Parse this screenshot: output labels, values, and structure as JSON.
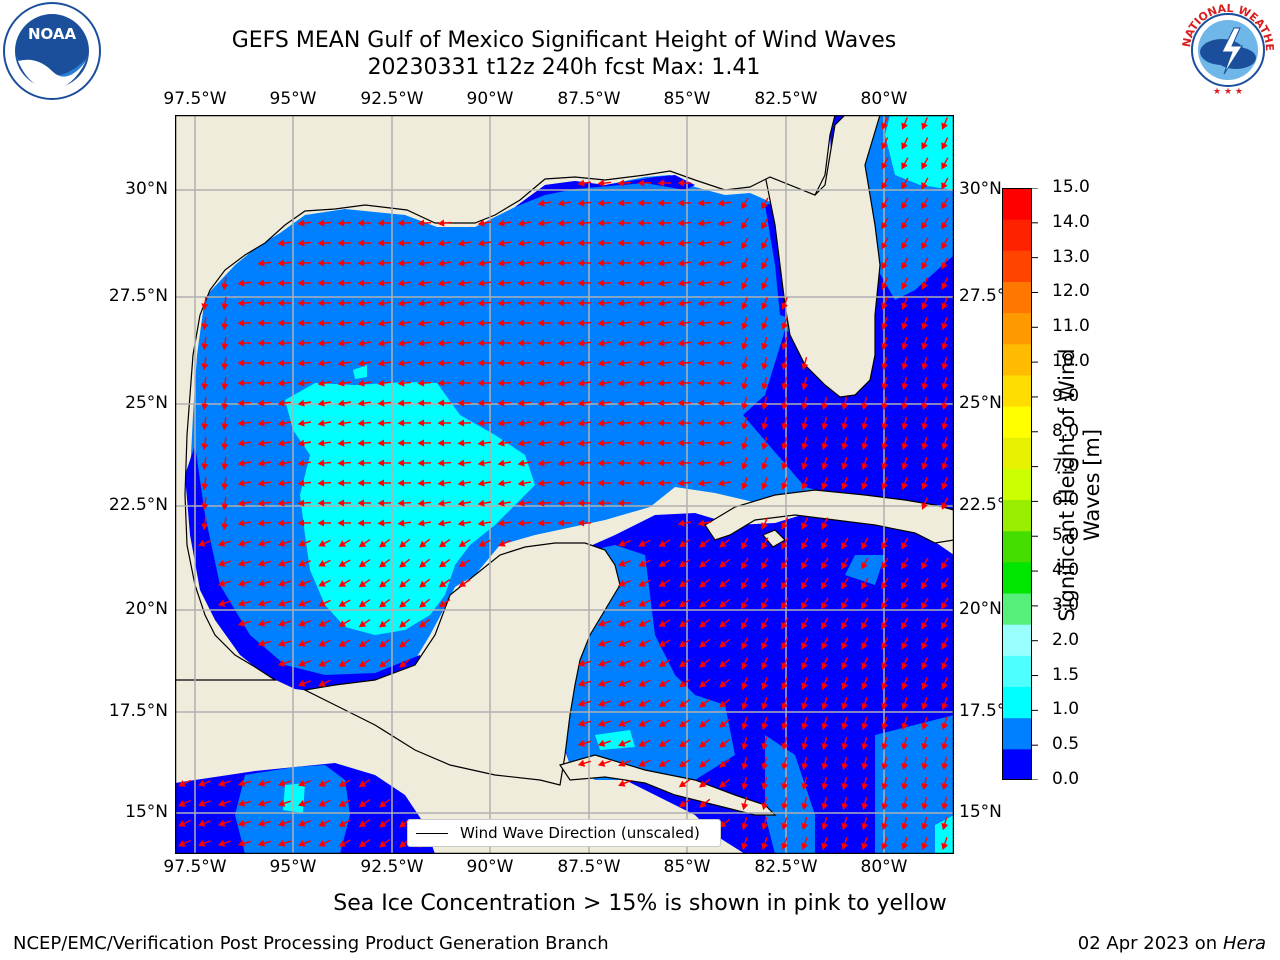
{
  "header": {
    "title_line1": "GEFS MEAN Gulf of Mexico Significant Height of Wind Waves",
    "title_line2": "20230331 t12z 240h fcst   Max: 1.41"
  },
  "logos": {
    "noaa_label": "NOAA",
    "noaa_ring_text": "NATIONAL OCEANIC AND ATMOSPHERIC ADMINISTRATION · U.S. DEPARTMENT OF COMMERCE",
    "nws_ring_text": "NATIONAL WEATHER SERVICE"
  },
  "map": {
    "lon_labels": [
      "97.5°W",
      "95°W",
      "92.5°W",
      "90°W",
      "87.5°W",
      "85°W",
      "82.5°W",
      "80°W"
    ],
    "lat_labels": [
      "30°N",
      "27.5°N",
      "25°N",
      "22.5°N",
      "20°N",
      "17.5°N",
      "15°N"
    ],
    "legend_text": "Wind Wave Direction (unscaled)",
    "colors": {
      "land": "#efecdc",
      "wave_0_05": "#0000ff",
      "wave_05_1": "#0080ff",
      "wave_1_15": "#00ffff",
      "arrow": "#ff0000",
      "grid": "#b0b0b0"
    }
  },
  "colorbar": {
    "ticks": [
      "15.0",
      "14.0",
      "13.0",
      "12.0",
      "11.0",
      "10.0",
      "9.0",
      "8.0",
      "7.0",
      "6.0",
      "5.0",
      "4.0",
      "3.0",
      "2.0",
      "1.5",
      "1.0",
      "0.5",
      "0.0"
    ],
    "label": "Significant Height of Wind Waves [m]",
    "label_line1": "Significant Height of Wind",
    "label_line2": "Waves [m]",
    "colors": [
      "#0000ff",
      "#0080ff",
      "#00ffff",
      "#4dffff",
      "#99ffff",
      "#55f07a",
      "#00e600",
      "#44dd00",
      "#99ee00",
      "#ccff00",
      "#e6f000",
      "#ffff00",
      "#ffdd00",
      "#ffbb00",
      "#ff9900",
      "#ff7700",
      "#ff4400",
      "#ff2200",
      "#ff0000"
    ]
  },
  "notes": {
    "sea_ice": "Sea Ice Concentration > 15% is shown in pink to yellow"
  },
  "footer": {
    "left": "NCEP/EMC/Verification Post Processing Product Generation Branch",
    "date": "02 Apr 2023 on ",
    "machine": "Hera"
  }
}
